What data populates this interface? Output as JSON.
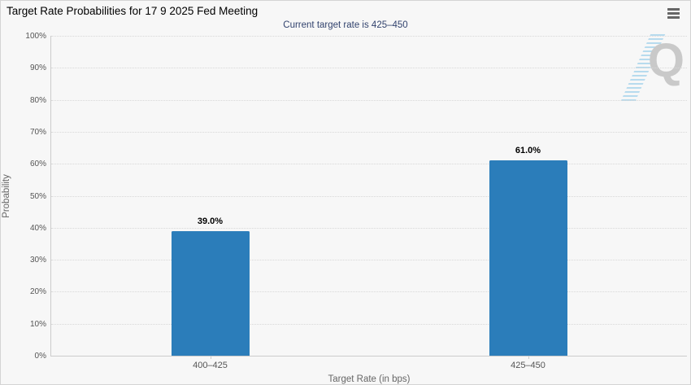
{
  "chart_data": {
    "type": "bar",
    "title": "Target Rate Probabilities for 17 9 2025 Fed Meeting",
    "subtitle": "Current target rate is 425–450",
    "categories": [
      "400–425",
      "425–450"
    ],
    "values": [
      39.0,
      61.0
    ],
    "value_labels": [
      "39.0%",
      "61.0%"
    ],
    "xlabel": "Target Rate (in bps)",
    "ylabel": "Probability",
    "ylim": [
      0,
      100
    ],
    "ytick_step": 10,
    "ytick_suffix": "%",
    "grid": "horizontal-dotted",
    "legend": "none",
    "bar_color": "#2b7dba"
  },
  "colors": {
    "background": "#f7f7f7",
    "bar": "#2b7dba",
    "subtitle_text": "#32436e",
    "axis_line": "#cccccc",
    "grid_line": "#d8d8d8",
    "tick_label_text": "#555555",
    "axis_title_text": "#666666",
    "watermark_grey": "#c9c9c9",
    "watermark_blue": "#b7dbee"
  },
  "icons": {
    "menu": "hamburger-menu-icon"
  },
  "watermark": {
    "letter": "Q"
  }
}
